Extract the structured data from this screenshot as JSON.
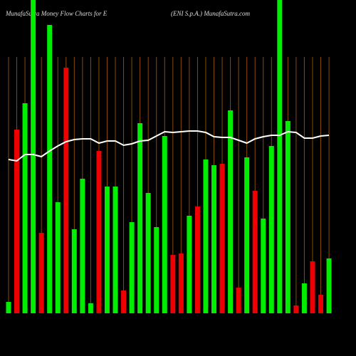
{
  "chart_data": {
    "type": "bar",
    "title": "MunafaSutra  Money Flow  Charts for E",
    "subtitle": "(ENI S.p.A.) MunafaSutra.com",
    "categories": [
      null,
      null,
      null,
      null,
      null,
      null,
      null,
      null,
      null,
      null,
      null,
      null,
      null,
      null,
      null,
      null,
      null,
      null,
      null,
      null,
      null,
      null,
      null,
      null,
      null,
      null,
      null,
      null,
      null,
      null,
      null,
      null,
      null,
      null,
      null,
      null,
      null,
      null,
      null,
      null
    ],
    "values": [
      16,
      258,
      295,
      460,
      113,
      405,
      156,
      345,
      118,
      189,
      14,
      228,
      178,
      178,
      32,
      128,
      267,
      169,
      121,
      249,
      82,
      84,
      137,
      150,
      216,
      208,
      210,
      285,
      36,
      219,
      172,
      133,
      235,
      460,
      270,
      11,
      42,
      73,
      26,
      77
    ],
    "colors": [
      "#00ee00",
      "#ee0000",
      "#00ee00",
      "#00ee00",
      "#ee0000",
      "#00ee00",
      "#00ee00",
      "#ee0000",
      "#00ee00",
      "#00ee00",
      "#00ee00",
      "#ee0000",
      "#00ee00",
      "#00ee00",
      "#ee0000",
      "#00ee00",
      "#00ee00",
      "#00ee00",
      "#00ee00",
      "#00ee00",
      "#ee0000",
      "#ee0000",
      "#00ee00",
      "#ee0000",
      "#00ee00",
      "#00ee00",
      "#ee0000",
      "#00ee00",
      "#ee0000",
      "#00ee00",
      "#ee0000",
      "#00ee00",
      "#00ee00",
      "#00ee00",
      "#00ee00",
      "#ee0000",
      "#00ee00",
      "#ee0000",
      "#ee0000",
      "#00ee00"
    ],
    "line": {
      "color": "#ffffff",
      "values": [
        216,
        214,
        223,
        223,
        220,
        228,
        235,
        241,
        244,
        245,
        245,
        239,
        242,
        242,
        236,
        238,
        242,
        243,
        249,
        255,
        254,
        255,
        256,
        256,
        254,
        248,
        247,
        247,
        243,
        239,
        245,
        248,
        250,
        250,
        255,
        254,
        246,
        246,
        249,
        250
      ]
    },
    "ylim": [
      0,
      440
    ]
  }
}
